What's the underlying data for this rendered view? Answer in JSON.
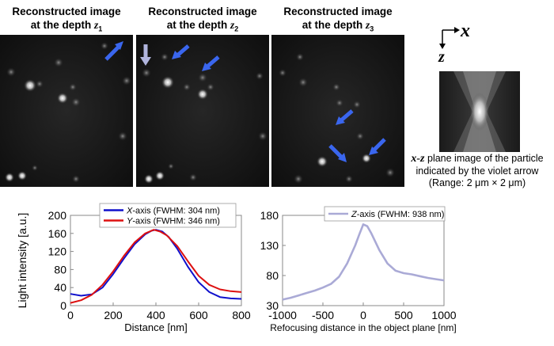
{
  "panels": [
    {
      "line1": "Reconstructed image",
      "line2": "at  the depth ",
      "depth": "z",
      "sub": "1"
    },
    {
      "line1": "Reconstructed image",
      "line2": "at  the depth ",
      "depth": "z",
      "sub": "2"
    },
    {
      "line1": "Reconstructed image",
      "line2": "at  the depth ",
      "depth": "z",
      "sub": "3"
    }
  ],
  "axes_icon": {
    "x": "x",
    "z": "z"
  },
  "caption": {
    "axis_name": "x-z",
    "line1_rest": " plane image of the particle",
    "line2": "indicated by the violet arrow",
    "line3": "(Range: 2 μm × 2 μm)"
  },
  "colors": {
    "arrow_blue": "#3a66ee",
    "arrow_violet": "#b0b4dd",
    "x_series": "#1010cc",
    "y_series": "#dd1010",
    "z_series": "#aaaad6"
  },
  "chart_data": [
    {
      "type": "line",
      "ylabel": "Light intensity [a.u.]",
      "xlabel": "Distance [nm]",
      "xlim": [
        0,
        800
      ],
      "ylim": [
        0,
        200
      ],
      "xticks": [
        "0",
        "200",
        "400",
        "600",
        "800"
      ],
      "yticks": [
        "0",
        "40",
        "80",
        "120",
        "160",
        "200"
      ],
      "legend": "top",
      "series": [
        {
          "name": "X-axis (FWHM: 304 nm)",
          "name_axis": "X",
          "name_rest": "-axis (FWHM: 304 nm)",
          "color": "#1010cc",
          "x": [
            0,
            50,
            100,
            150,
            200,
            250,
            300,
            350,
            380,
            400,
            430,
            460,
            500,
            550,
            600,
            650,
            700,
            750,
            800
          ],
          "y": [
            26,
            22,
            25,
            40,
            70,
            104,
            136,
            158,
            166,
            168,
            164,
            152,
            126,
            86,
            52,
            30,
            19,
            16,
            15
          ]
        },
        {
          "name": "Y-axis (FWHM: 346 nm)",
          "name_axis": "Y",
          "name_rest": "-axis (FWHM: 346 nm)",
          "color": "#dd1010",
          "x": [
            0,
            50,
            100,
            150,
            200,
            250,
            300,
            350,
            390,
            420,
            450,
            500,
            550,
            600,
            650,
            700,
            750,
            800
          ],
          "y": [
            6,
            12,
            24,
            46,
            76,
            110,
            140,
            160,
            168,
            164,
            156,
            132,
            98,
            66,
            46,
            36,
            32,
            30
          ]
        }
      ]
    },
    {
      "type": "line",
      "ylabel": "",
      "xlabel": "Refocusing distance in the object plane [nm]",
      "xlim": [
        -1000,
        1000
      ],
      "ylim": [
        30,
        180
      ],
      "xticks": [
        "-1000",
        "-500",
        "0",
        "500",
        "1000"
      ],
      "yticks": [
        "30",
        "80",
        "130",
        "180"
      ],
      "legend": "top",
      "series": [
        {
          "name": "Z-axis (FWHM: 938 nm)",
          "name_axis": "Z",
          "name_rest": "-axis (FWHM: 938 nm)",
          "color": "#aaaad6",
          "x": [
            -1000,
            -900,
            -800,
            -700,
            -600,
            -500,
            -400,
            -300,
            -200,
            -100,
            -50,
            0,
            50,
            100,
            200,
            300,
            400,
            500,
            600,
            700,
            800,
            900,
            1000
          ],
          "y": [
            40,
            43,
            47,
            51,
            55,
            60,
            66,
            78,
            100,
            130,
            148,
            165,
            162,
            150,
            122,
            100,
            88,
            84,
            82,
            79,
            76,
            74,
            72
          ]
        }
      ]
    }
  ]
}
